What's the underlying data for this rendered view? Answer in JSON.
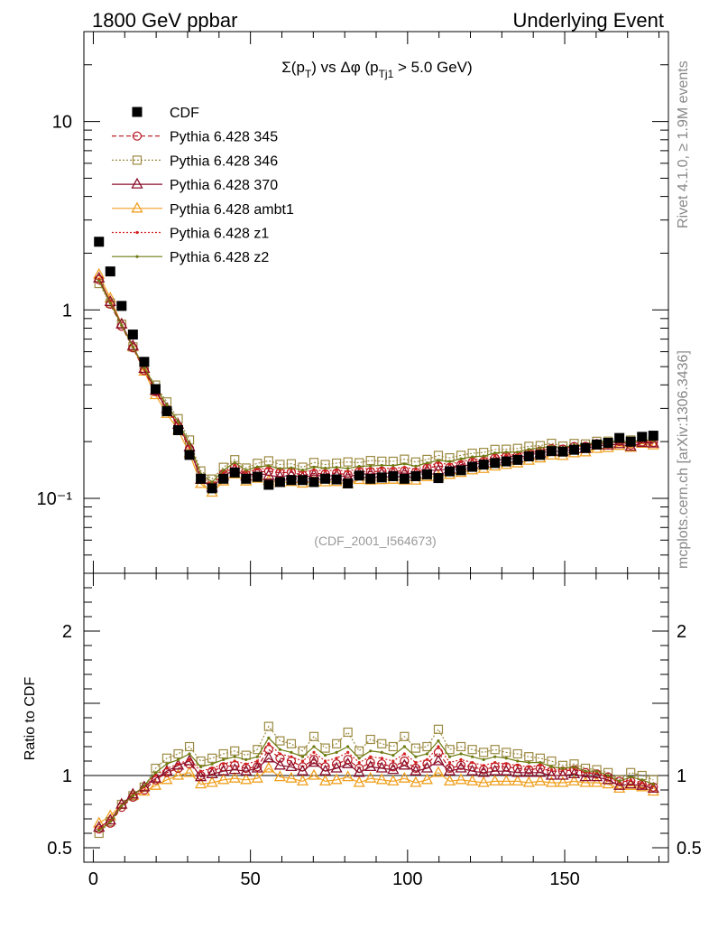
{
  "header": {
    "left": "1800 GeV ppbar",
    "right": "Underlying Event",
    "side_top": "Rivet 4.1.0, ≥ 1.9M events",
    "side_bottom": "mcplots.cern.ch [arXiv:1306.3436]"
  },
  "chart_data": {
    "type": "line",
    "title": "Σ(p_T) vs Δφ (p_Tj1 > 5.0 GeV)",
    "watermark": "(CDF_2001_I564673)",
    "xlabel": "",
    "ylabel_main": "",
    "ylabel_ratio": "Ratio to CDF",
    "xlim": [
      -3,
      183
    ],
    "ylim_main": [
      0.04,
      30
    ],
    "ylim_ratio": [
      0.4,
      2.4
    ],
    "yscale_main": "log",
    "x_ticks": [
      "0",
      "50",
      "100",
      "150"
    ],
    "y_ticks_main": [
      "10⁻¹",
      "1",
      "10"
    ],
    "y_ticks_ratio": [
      "0.5",
      "1",
      "2"
    ],
    "legend_position": "top-left",
    "x": [
      1.8,
      5.4,
      9,
      12.6,
      16.2,
      19.8,
      23.4,
      27,
      30.6,
      34.2,
      37.8,
      41.4,
      45,
      48.6,
      52.2,
      55.8,
      59.4,
      63,
      66.6,
      70.2,
      73.8,
      77.4,
      81,
      84.6,
      88.2,
      91.8,
      95.4,
      99,
      102.6,
      106.2,
      109.8,
      113.4,
      117,
      120.6,
      124.2,
      127.8,
      131.4,
      135,
      138.6,
      142.2,
      145.8,
      149.4,
      153,
      156.6,
      160.2,
      163.8,
      167.4,
      171,
      174.6,
      178.2
    ],
    "data": {
      "name": "CDF",
      "values": [
        2.3,
        1.6,
        1.05,
        0.74,
        0.53,
        0.38,
        0.29,
        0.23,
        0.17,
        0.127,
        0.113,
        0.127,
        0.137,
        0.127,
        0.13,
        0.118,
        0.122,
        0.125,
        0.125,
        0.122,
        0.127,
        0.126,
        0.12,
        0.132,
        0.127,
        0.129,
        0.131,
        0.127,
        0.131,
        0.134,
        0.128,
        0.139,
        0.141,
        0.147,
        0.151,
        0.154,
        0.157,
        0.16,
        0.167,
        0.17,
        0.178,
        0.177,
        0.181,
        0.185,
        0.193,
        0.197,
        0.209,
        0.2,
        0.212,
        0.215
      ]
    },
    "series": [
      {
        "name": "Pythia 6.428 345",
        "color": "#b5121b",
        "marker": "circle",
        "dash": "5,3",
        "ratio": [
          0.63,
          0.67,
          0.78,
          0.85,
          0.9,
          0.97,
          1.02,
          1.05,
          1.08,
          1.0,
          1.03,
          1.06,
          1.07,
          1.05,
          1.06,
          1.18,
          1.12,
          1.1,
          1.06,
          1.11,
          1.06,
          1.08,
          1.11,
          1.05,
          1.09,
          1.08,
          1.06,
          1.1,
          1.05,
          1.08,
          1.16,
          1.05,
          1.07,
          1.06,
          1.04,
          1.06,
          1.06,
          1.05,
          1.04,
          1.05,
          1.03,
          1.03,
          1.04,
          1.02,
          1.01,
          0.99,
          0.96,
          0.96,
          0.94,
          0.92
        ]
      },
      {
        "name": "Pythia 6.428 346",
        "color": "#9c8a42",
        "marker": "square",
        "dash": "2,2",
        "ratio": [
          0.6,
          0.68,
          0.8,
          0.86,
          0.92,
          1.05,
          1.12,
          1.15,
          1.2,
          1.1,
          1.12,
          1.15,
          1.17,
          1.14,
          1.18,
          1.34,
          1.24,
          1.22,
          1.17,
          1.27,
          1.19,
          1.22,
          1.3,
          1.17,
          1.25,
          1.22,
          1.2,
          1.27,
          1.19,
          1.2,
          1.32,
          1.18,
          1.2,
          1.18,
          1.16,
          1.18,
          1.16,
          1.15,
          1.13,
          1.12,
          1.1,
          1.07,
          1.08,
          1.05,
          1.04,
          1.02,
          0.97,
          1.02,
          1.0,
          0.97
        ]
      },
      {
        "name": "Pythia 6.428 370",
        "color": "#8b0f2a",
        "marker": "triangle",
        "dash": "",
        "ratio": [
          0.64,
          0.69,
          0.8,
          0.87,
          0.92,
          0.98,
          1.03,
          1.07,
          1.1,
          0.99,
          1.01,
          1.03,
          1.04,
          1.03,
          1.05,
          1.12,
          1.07,
          1.06,
          1.03,
          1.09,
          1.03,
          1.05,
          1.08,
          1.02,
          1.06,
          1.05,
          1.04,
          1.07,
          1.03,
          1.05,
          1.1,
          1.03,
          1.05,
          1.03,
          1.02,
          1.03,
          1.03,
          1.02,
          1.02,
          1.02,
          1.0,
          1.0,
          1.01,
          0.99,
          0.99,
          0.97,
          0.93,
          0.94,
          0.93,
          0.91
        ]
      },
      {
        "name": "Pythia 6.428 ambt1",
        "color": "#f0a020",
        "marker": "triangle",
        "dash": "",
        "ratio": [
          0.67,
          0.72,
          0.8,
          0.86,
          0.89,
          0.93,
          0.97,
          1.0,
          1.02,
          0.94,
          0.95,
          0.97,
          0.98,
          0.97,
          0.98,
          1.05,
          0.99,
          0.98,
          0.96,
          1.0,
          0.96,
          0.97,
          0.99,
          0.95,
          0.98,
          0.97,
          0.96,
          0.98,
          0.95,
          0.97,
          1.02,
          0.96,
          0.97,
          0.96,
          0.95,
          0.96,
          0.96,
          0.96,
          0.95,
          0.96,
          0.95,
          0.95,
          0.96,
          0.95,
          0.95,
          0.94,
          0.91,
          0.93,
          0.92,
          0.89
        ]
      },
      {
        "name": "Pythia 6.428 z1",
        "color": "#d42020",
        "marker": "dot",
        "dash": "2,2",
        "ratio": [
          0.63,
          0.69,
          0.79,
          0.86,
          0.92,
          1.0,
          1.05,
          1.08,
          1.11,
          1.03,
          1.05,
          1.08,
          1.1,
          1.08,
          1.1,
          1.22,
          1.15,
          1.13,
          1.1,
          1.16,
          1.1,
          1.12,
          1.16,
          1.09,
          1.13,
          1.12,
          1.1,
          1.15,
          1.09,
          1.11,
          1.2,
          1.09,
          1.11,
          1.09,
          1.07,
          1.09,
          1.08,
          1.07,
          1.06,
          1.07,
          1.04,
          1.04,
          1.05,
          1.02,
          1.02,
          0.99,
          0.95,
          0.97,
          0.95,
          0.93
        ]
      },
      {
        "name": "Pythia 6.428 z2",
        "color": "#6e7a10",
        "marker": "dot",
        "dash": "",
        "ratio": [
          0.62,
          0.68,
          0.79,
          0.86,
          0.93,
          1.02,
          1.08,
          1.11,
          1.15,
          1.06,
          1.08,
          1.11,
          1.13,
          1.11,
          1.13,
          1.26,
          1.18,
          1.16,
          1.13,
          1.2,
          1.14,
          1.16,
          1.2,
          1.12,
          1.17,
          1.16,
          1.14,
          1.2,
          1.13,
          1.15,
          1.24,
          1.13,
          1.15,
          1.13,
          1.11,
          1.13,
          1.12,
          1.1,
          1.09,
          1.09,
          1.06,
          1.05,
          1.06,
          1.03,
          1.03,
          1.0,
          0.96,
          0.99,
          0.97,
          0.94
        ]
      }
    ]
  }
}
